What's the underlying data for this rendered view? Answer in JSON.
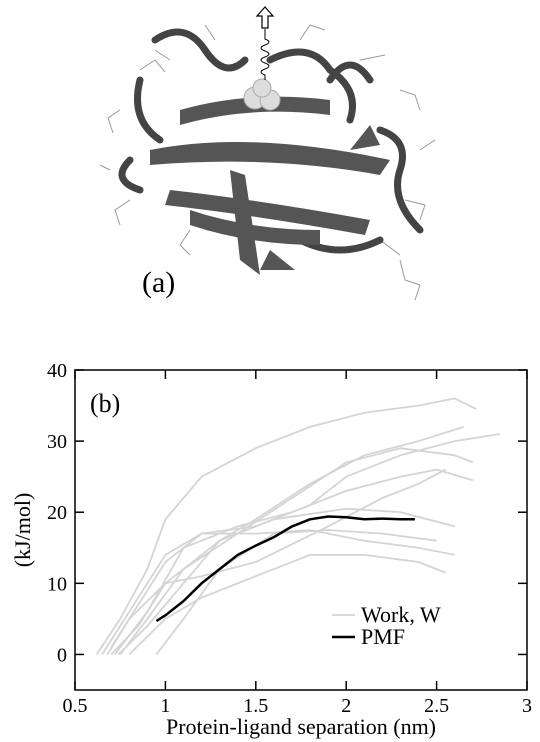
{
  "panel_a": {
    "label": "(a)"
  },
  "chart_data": {
    "type": "line",
    "annotation": "(b)",
    "x_label": "Protein-ligand separation (nm)",
    "y_label": "(kJ/mol)",
    "xlim": [
      0.5,
      3
    ],
    "xticks": [
      0.5,
      1,
      1.5,
      2,
      2.5,
      3
    ],
    "ylim": [
      -5,
      40
    ],
    "yticks": [
      0,
      10,
      20,
      30,
      40
    ],
    "legend": "lower right",
    "series": [
      {
        "name": "Work, W",
        "color": "#d4d4d4",
        "curves": [
          {
            "x": [
              0.62,
              0.75,
              0.9,
              1.0,
              1.2,
              1.5,
              1.8,
              2.1,
              2.4,
              2.6,
              2.72
            ],
            "values": [
              0,
              5,
              12,
              19,
              25,
              29,
              32,
              34,
              35,
              36,
              34.5
            ]
          },
          {
            "x": [
              0.65,
              0.8,
              1.0,
              1.2,
              1.5,
              1.8,
              2.0,
              2.3,
              2.6,
              2.85
            ],
            "values": [
              0,
              6,
              14,
              17,
              18,
              21,
              25,
              28,
              30,
              31
            ]
          },
          {
            "x": [
              0.7,
              0.85,
              1.0,
              1.3,
              1.5,
              1.8,
              2.1,
              2.4,
              2.65
            ],
            "values": [
              0,
              4,
              10,
              16,
              19,
              24,
              28,
              30,
              32
            ]
          },
          {
            "x": [
              0.72,
              0.9,
              1.1,
              1.4,
              1.7,
              2.0,
              2.3,
              2.5,
              2.7
            ],
            "values": [
              0,
              6,
              15,
              18,
              20,
              23,
              25,
              26,
              24.5
            ]
          },
          {
            "x": [
              0.74,
              0.9,
              1.1,
              1.3,
              1.6,
              2.0,
              2.3,
              2.6
            ],
            "values": [
              0,
              4,
              10,
              16,
              19,
              20.5,
              20,
              18
            ]
          },
          {
            "x": [
              0.7,
              0.85,
              1.0,
              1.2,
              1.5,
              1.8,
              2.1,
              2.4,
              2.6
            ],
            "values": [
              1,
              7,
              13,
              17,
              17,
              17.5,
              16,
              15,
              14
            ]
          },
          {
            "x": [
              0.95,
              1.1,
              1.3,
              1.6,
              1.9,
              2.2,
              2.5
            ],
            "values": [
              0,
              5,
              12,
              17,
              17.5,
              17,
              16
            ]
          },
          {
            "x": [
              0.68,
              0.8,
              1.0,
              1.2,
              1.5,
              1.9,
              2.2,
              2.4,
              2.55
            ],
            "values": [
              0,
              5,
              10,
              11,
              13,
              18,
              22,
              24,
              26
            ]
          },
          {
            "x": [
              0.75,
              0.9,
              1.1,
              1.4,
              1.7,
              2.0,
              2.3,
              2.6,
              2.7
            ],
            "values": [
              0,
              5,
              12,
              17,
              22,
              27,
              29,
              28,
              27
            ]
          },
          {
            "x": [
              0.8,
              1.0,
              1.2,
              1.5,
              1.8,
              2.1,
              2.4,
              2.55
            ],
            "values": [
              0,
              5,
              8,
              11,
              14,
              14,
              13,
              11.5
            ]
          }
        ]
      },
      {
        "name": "PMF",
        "color": "#000000",
        "x": [
          0.95,
          1.0,
          1.1,
          1.2,
          1.3,
          1.4,
          1.5,
          1.6,
          1.7,
          1.8,
          1.9,
          2.0,
          2.1,
          2.2,
          2.3,
          2.38
        ],
        "values": [
          4.7,
          5.5,
          7.5,
          10,
          12,
          14,
          15.3,
          16.5,
          18,
          19,
          19.4,
          19.3,
          19,
          19.1,
          19,
          19
        ]
      }
    ]
  }
}
